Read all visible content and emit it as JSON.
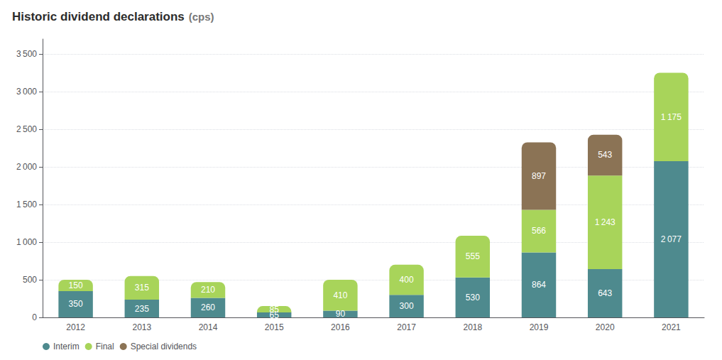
{
  "chart_data": {
    "type": "bar",
    "title": "Historic dividend declarations",
    "subtitle": "(cps)",
    "categories": [
      "2012",
      "2013",
      "2014",
      "2015",
      "2016",
      "2017",
      "2018",
      "2019",
      "2020",
      "2021"
    ],
    "series": [
      {
        "name": "Interim",
        "color": "#4e8a8e",
        "values": [
          350,
          235,
          260,
          65,
          90,
          300,
          530,
          864,
          643,
          2077
        ],
        "value_labels": [
          "350",
          "235",
          "260",
          "65",
          "90",
          "300",
          "530",
          "864",
          "643",
          "2 077"
        ]
      },
      {
        "name": "Final",
        "color": "#a8d45a",
        "values": [
          150,
          315,
          210,
          85,
          410,
          400,
          555,
          566,
          1243,
          1175
        ],
        "value_labels": [
          "150",
          "315",
          "210",
          "85",
          "410",
          "400",
          "555",
          "566",
          "1 243",
          "1 175"
        ]
      },
      {
        "name": "Special dividends",
        "color": "#8b7355",
        "values": [
          0,
          0,
          0,
          0,
          0,
          0,
          0,
          897,
          543,
          0
        ],
        "value_labels": [
          null,
          null,
          null,
          null,
          null,
          null,
          null,
          "897",
          "543",
          null
        ]
      }
    ],
    "stacked": true,
    "data_labels": true,
    "ylim": [
      0,
      3700
    ],
    "yticks": [
      0,
      500,
      {
        "value": 1000,
        "label": "1 000"
      },
      {
        "value": 1500,
        "label": "1 500"
      },
      {
        "value": 2000,
        "label": "2 000"
      },
      {
        "value": 2500,
        "label": "2 500"
      },
      {
        "value": 3000,
        "label": "3 000"
      },
      {
        "value": 3500,
        "label": "3 500"
      }
    ],
    "grid": true,
    "legend": "lower left"
  }
}
